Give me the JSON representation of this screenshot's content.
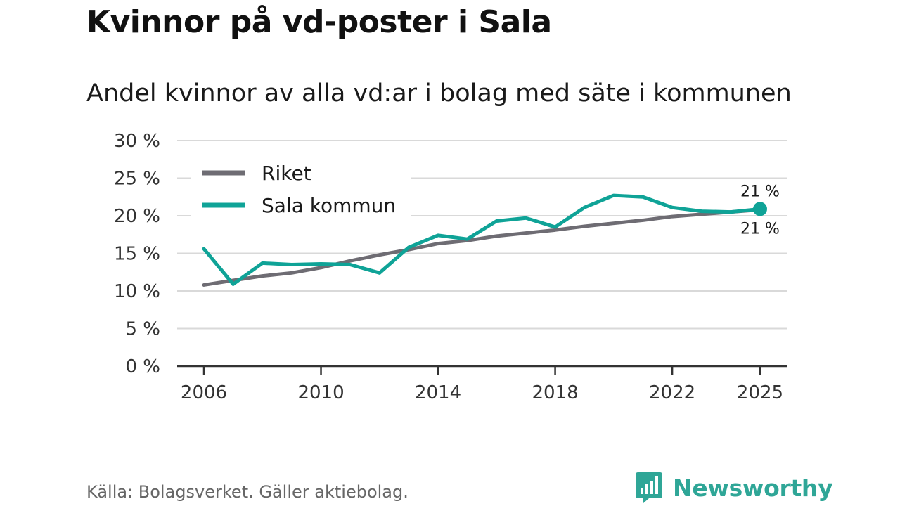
{
  "header": {
    "title": "Kvinnor på vd-poster i Sala",
    "subtitle": "Andel kvinnor av alla vd:ar i bolag med säte i kommunen"
  },
  "footer": {
    "source": "Källa: Bolagsverket. Gäller aktiebolag.",
    "brand": "Newsworthy",
    "brand_icon": "newsworthy-logo-icon"
  },
  "colors": {
    "riket": "#6e6c73",
    "sala": "#0fa397",
    "grid": "#d9d9d9",
    "axis": "#333333",
    "brand": "#2fa697"
  },
  "chart_data": {
    "type": "line",
    "title": "Andel kvinnor av alla vd:ar i bolag med säte i kommunen",
    "xlabel": "",
    "ylabel": "",
    "x": [
      2006,
      2007,
      2008,
      2009,
      2010,
      2011,
      2012,
      2013,
      2014,
      2015,
      2016,
      2017,
      2018,
      2019,
      2020,
      2021,
      2022,
      2023,
      2024,
      2025
    ],
    "xlim": [
      2006,
      2025
    ],
    "ylim": [
      0,
      30
    ],
    "x_ticks": [
      "2006",
      "2010",
      "2014",
      "2018",
      "2022",
      "2025"
    ],
    "y_ticks": [
      "0 %",
      "5 %",
      "10 %",
      "15 %",
      "20 %",
      "25 %",
      "30 %"
    ],
    "grid": true,
    "legend_position": "top-left",
    "series": [
      {
        "name": "Riket",
        "color": "#6e6c73",
        "values": [
          10.8,
          11.4,
          12.0,
          12.4,
          13.1,
          14.0,
          14.8,
          15.5,
          16.3,
          16.7,
          17.3,
          17.7,
          18.1,
          18.6,
          19.0,
          19.4,
          19.9,
          20.2,
          20.5,
          20.8
        ],
        "end_label": "21 %"
      },
      {
        "name": "Sala kommun",
        "color": "#0fa397",
        "values": [
          15.6,
          10.9,
          13.7,
          13.5,
          13.6,
          13.5,
          12.4,
          15.8,
          17.4,
          16.9,
          19.3,
          19.7,
          18.5,
          21.1,
          22.7,
          22.5,
          21.1,
          20.6,
          20.5,
          20.9
        ],
        "end_label": "21 %"
      }
    ]
  }
}
